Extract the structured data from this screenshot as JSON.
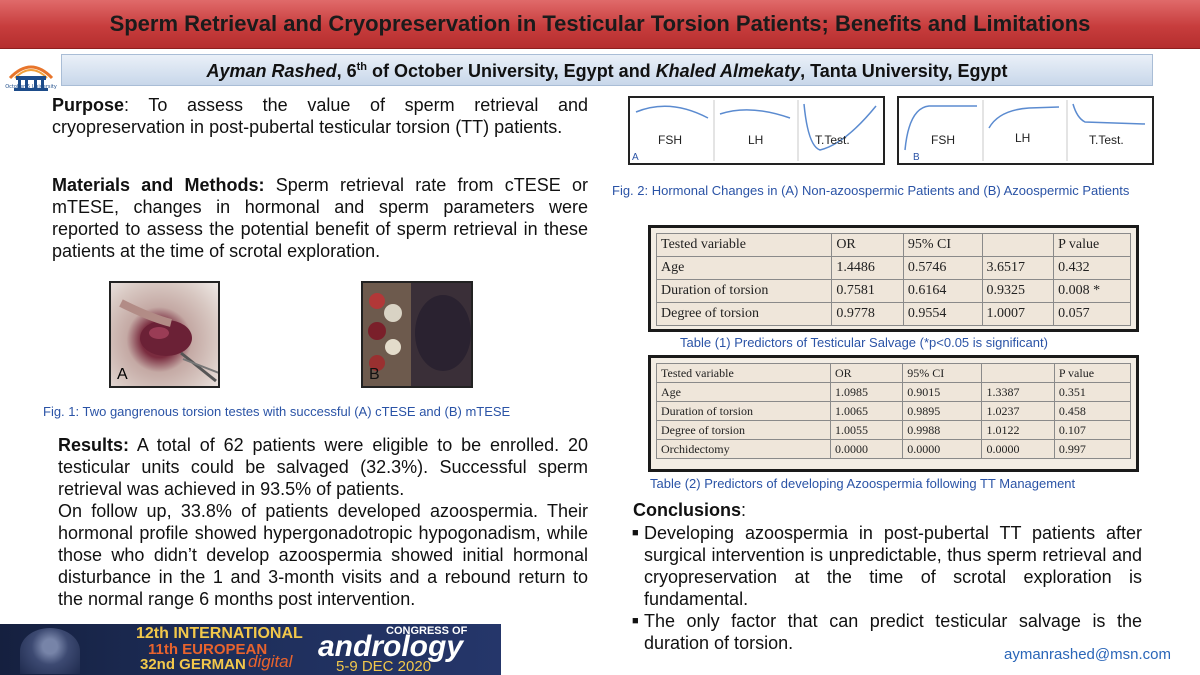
{
  "title": "Sperm Retrieval and Cryopreservation in Testicular Torsion Patients; Benefits and Limitations",
  "authors": {
    "author1": "Ayman Rashed",
    "affil1_pre": ", 6",
    "affil1_sup": "th",
    "affil1_post": " of October University, Egypt and ",
    "author2": "Khaled Almekaty",
    "affil2": ", Tanta University, Egypt"
  },
  "logo": {
    "label": "October 6 University",
    "icon": "university-logo-icon"
  },
  "purpose": {
    "heading": "Purpose",
    "text": ": To assess the value of sperm retrieval and cryopreservation in post-pubertal testicular torsion (TT) patients."
  },
  "methods": {
    "heading": "Materials and Methods:",
    "text": " Sperm retrieval rate from cTESE or mTESE, changes in hormonal and sperm parameters were reported to assess the potential benefit of sperm retrieval in these patients at the time of scrotal exploration."
  },
  "figure1": {
    "label_a": "A",
    "label_b": "B",
    "caption": "Fig. 1: Two gangrenous torsion testes with successful (A) cTESE and (B) mTESE"
  },
  "results": {
    "heading": "Results:",
    "text1": " A total of 62 patients were eligible to be enrolled. 20 testicular units could be salvaged (32.3%). Successful sperm retrieval was achieved in 93.5% of patients.",
    "text2": "On follow up, 33.8% of patients developed azoospermia. Their hormonal profile showed hypergonadotropic hypogonadism, while those who didn’t develop azoospermia showed initial hormonal disturbance in the 1 and 3-month visits and a rebound return to the normal range 6 months post intervention."
  },
  "figure2": {
    "panel_a": {
      "label": "A",
      "charts": [
        "FSH",
        "LH",
        "T.Test."
      ]
    },
    "panel_b": {
      "label": "B",
      "charts": [
        "FSH",
        "LH",
        "T.Test."
      ]
    },
    "caption": "Fig. 2: Hormonal Changes in (A) Non-azoospermic Patients and (B) Azoospermic Patients"
  },
  "table1": {
    "header": [
      "Tested variable",
      "OR",
      "95% CI",
      "",
      "P value"
    ],
    "rows": [
      [
        "Age",
        "1.4486",
        "0.5746",
        "3.6517",
        "0.432"
      ],
      [
        "Duration of torsion",
        "0.7581",
        "0.6164",
        "0.9325",
        "0.008 *"
      ],
      [
        "Degree of torsion",
        "0.9778",
        "0.9554",
        "1.0007",
        "0.057"
      ]
    ],
    "caption": "Table (1) Predictors of Testicular Salvage (*p<0.05 is significant)"
  },
  "table2": {
    "header": [
      "Tested variable",
      "OR",
      "95% CI",
      "",
      "P value"
    ],
    "rows": [
      [
        "Age",
        "1.0985",
        "0.9015",
        "1.3387",
        "0.351"
      ],
      [
        "Duration of torsion",
        "1.0065",
        "0.9895",
        "1.0237",
        "0.458"
      ],
      [
        "Degree of torsion",
        "1.0055",
        "0.9988",
        "1.0122",
        "0.107"
      ],
      [
        "Orchidectomy",
        "0.0000",
        "0.0000",
        "0.0000",
        "0.997"
      ]
    ],
    "caption": "Table (2) Predictors of developing Azoospermia following TT Management"
  },
  "conclusions": {
    "heading": "Conclusions",
    "colon": ":",
    "items": [
      "Developing azoospermia in post-pubertal TT patients after surgical intervention is unpredictable, thus sperm retrieval and cryopreservation at the time of scrotal exploration is fundamental.",
      " The only factor that can predict testicular salvage is the duration of torsion."
    ]
  },
  "banner": {
    "line1": "12th INTERNATIONAL",
    "line2": "11th EUROPEAN",
    "line3": "32nd GERMAN",
    "congress": "CONGRESS OF",
    "andrology": "andrology",
    "dates": "5-9 DEC 2020",
    "digital": "digital"
  },
  "email": "aymanrashed@msn.com"
}
